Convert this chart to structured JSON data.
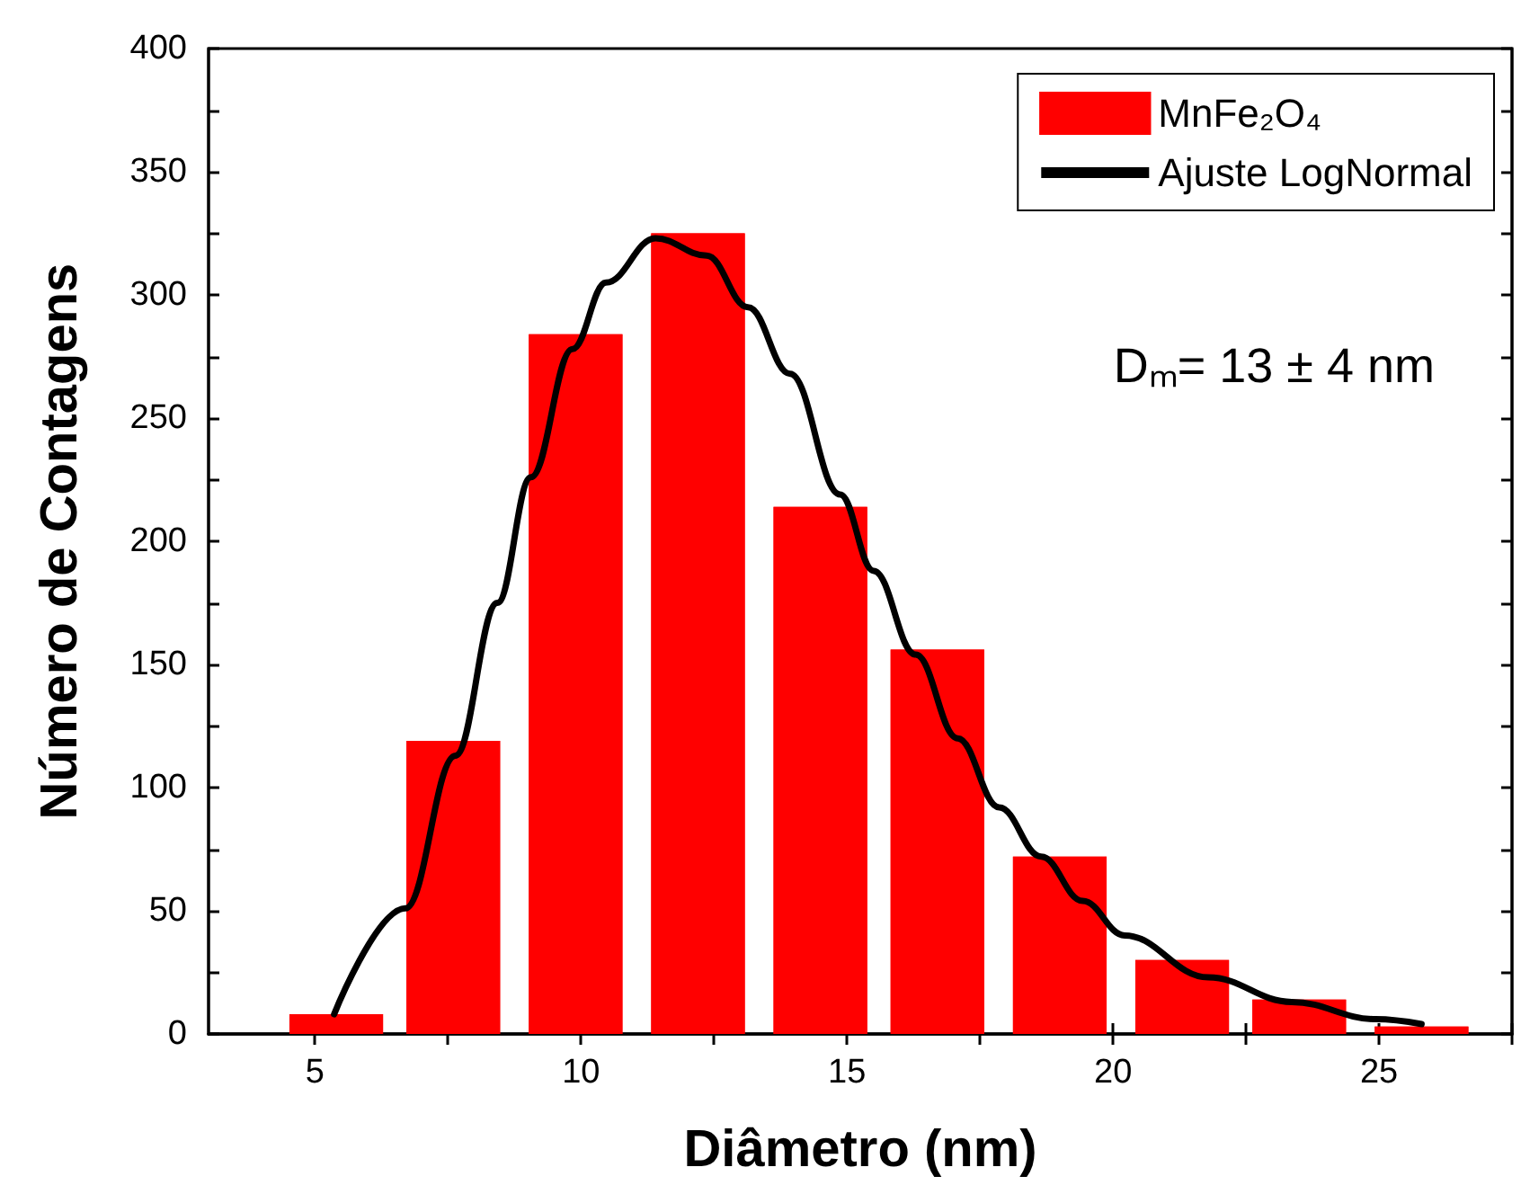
{
  "chart_data": {
    "type": "bar",
    "xlabel": "Diâmetro (nm)",
    "ylabel": "Número de Contagens",
    "x": [
      5.4,
      7.6,
      9.9,
      12.2,
      14.5,
      16.7,
      19.0,
      21.3,
      23.5,
      25.8
    ],
    "series": [
      {
        "name": "MnFe₂O₄",
        "color": "#ff0000",
        "values": [
          8,
          119,
          284,
          325,
          214,
          156,
          72,
          30,
          14,
          3
        ]
      },
      {
        "name": "Ajuste LogNormal",
        "type": "line",
        "color": "#000000",
        "x": [
          5.36,
          6.7,
          7.64,
          8.43,
          9.06,
          9.84,
          10.47,
          11.4,
          12.36,
          13.14,
          13.93,
          14.87,
          15.5,
          16.29,
          17.08,
          17.86,
          18.65,
          19.43,
          20.22,
          21.79,
          23.36,
          24.94,
          25.8
        ],
        "values": [
          8,
          51,
          113,
          175,
          226,
          278,
          305,
          323,
          316,
          295,
          268,
          219,
          188,
          154,
          120,
          92,
          72,
          54,
          40,
          23,
          13,
          6,
          4
        ]
      }
    ],
    "xlim": [
      3,
      27.5
    ],
    "xticks": [
      5,
      {
        "value": 7.5,
        "label": null
      },
      10,
      {
        "value": 12.5,
        "label": null
      },
      15,
      {
        "value": 17.5,
        "label": null
      },
      20,
      {
        "value": 22.5,
        "label": null
      },
      25,
      {
        "value": 27.5,
        "label": null
      }
    ],
    "ylim": [
      0,
      400
    ],
    "yticks": [
      0,
      {
        "value": 25,
        "label": null
      },
      50,
      {
        "value": 75,
        "label": null
      },
      100,
      {
        "value": 125,
        "label": null
      },
      150,
      {
        "value": 175,
        "label": null
      },
      200,
      {
        "value": 225,
        "label": null
      },
      250,
      {
        "value": 275,
        "label": null
      },
      300,
      {
        "value": 325,
        "label": null
      },
      350,
      {
        "value": 375,
        "label": null
      },
      400
    ],
    "annotations": [
      "Dₘ= 13 ± 4 nm"
    ],
    "legend": "top right",
    "grid": false,
    "marker": "none",
    "line_style": "solid"
  }
}
